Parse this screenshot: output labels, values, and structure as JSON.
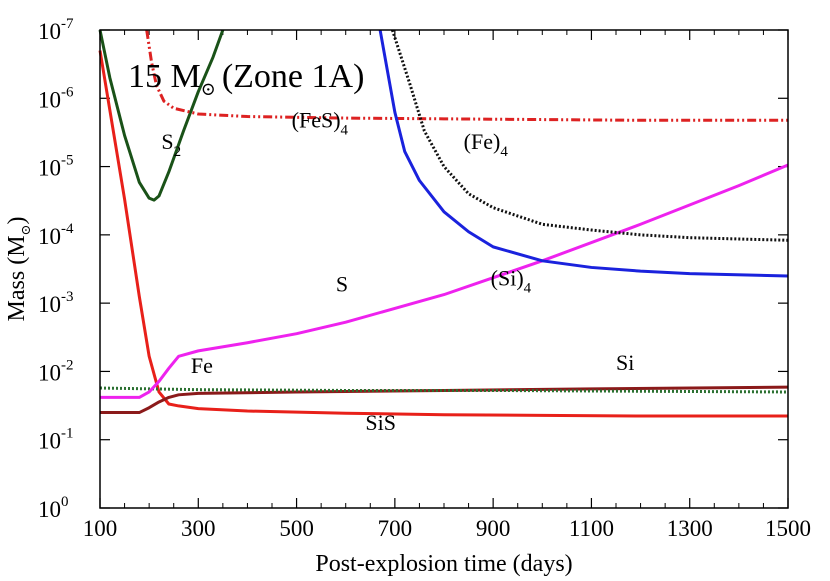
{
  "chart_data": {
    "type": "line",
    "title": "15 M⊙ (Zone 1A)",
    "title_parts": {
      "main": "15 M",
      "sub": "⊙",
      "suffix": "(Zone 1A)"
    },
    "xlabel": "Post-explosion time (days)",
    "ylabel": {
      "main": "Mass (M",
      "sub": "⊙",
      "suffix": ")"
    },
    "xlim": [
      100,
      1500
    ],
    "ylim_log10": [
      -7,
      0
    ],
    "y_scale": "log",
    "x_ticks": [
      100,
      300,
      500,
      700,
      900,
      1100,
      1300,
      1500
    ],
    "x_tick_labels": [
      "100",
      "300",
      "500",
      "700",
      "900",
      "1100",
      "1300",
      "1500"
    ],
    "y_ticks_exp": [
      0,
      -1,
      -2,
      -3,
      -4,
      -5,
      -6,
      -7
    ],
    "y_tick_labels": [
      {
        "base": "10",
        "exp": "0"
      },
      {
        "base": "10",
        "exp": "-1"
      },
      {
        "base": "10",
        "exp": "-2"
      },
      {
        "base": "10",
        "exp": "-3"
      },
      {
        "base": "10",
        "exp": "-4"
      },
      {
        "base": "10",
        "exp": "-5"
      },
      {
        "base": "10",
        "exp": "-6"
      },
      {
        "base": "10",
        "exp": "-7"
      }
    ],
    "series": [
      {
        "name": "SiS",
        "label": {
          "main": "SiS",
          "sub": ""
        },
        "label_at": [
          640,
          0.072
        ],
        "color": "#e8201a",
        "dash": "",
        "width": 3,
        "x": [
          100,
          150,
          180,
          200,
          220,
          240,
          260,
          300,
          400,
          600,
          800,
          1000,
          1200,
          1500
        ],
        "y": [
          2e-07,
          3e-05,
          0.0008,
          0.006,
          0.02,
          0.03,
          0.032,
          0.035,
          0.038,
          0.041,
          0.043,
          0.044,
          0.045,
          0.045
        ]
      },
      {
        "name": "Si",
        "label": {
          "main": "Si",
          "sub": ""
        },
        "label_at": [
          1150,
          0.0095
        ],
        "color": "#8b1a1a",
        "dash": "",
        "width": 3,
        "x": [
          100,
          180,
          200,
          220,
          240,
          260,
          300,
          500,
          800,
          1100,
          1500
        ],
        "y": [
          0.04,
          0.04,
          0.034,
          0.028,
          0.024,
          0.022,
          0.021,
          0.02,
          0.019,
          0.018,
          0.017
        ]
      },
      {
        "name": "Fe",
        "label": {
          "main": "Fe",
          "sub": ""
        },
        "label_at": [
          285,
          0.0105
        ],
        "color": "#2a7030",
        "dash": "2,2",
        "width": 3,
        "x": [
          100,
          300,
          600,
          900,
          1200,
          1500
        ],
        "y": [
          0.0175,
          0.0185,
          0.019,
          0.019,
          0.0195,
          0.02
        ]
      },
      {
        "name": "S",
        "label": {
          "main": "S",
          "sub": ""
        },
        "label_at": [
          580,
          0.00068
        ],
        "color": "#ee22ee",
        "dash": "",
        "width": 3,
        "x": [
          100,
          180,
          200,
          220,
          240,
          260,
          300,
          400,
          500,
          600,
          800,
          1000,
          1200,
          1400,
          1500
        ],
        "y": [
          0.024,
          0.024,
          0.02,
          0.014,
          0.009,
          0.006,
          0.005,
          0.0038,
          0.0028,
          0.0019,
          0.00075,
          0.00024,
          7e-05,
          1.9e-05,
          9.5e-06
        ]
      },
      {
        "name": "S2",
        "label": {
          "main": "S",
          "sub": "2"
        },
        "label_at": [
          225,
          5.5e-06
        ],
        "color": "#1a5218",
        "dash": "",
        "width": 3,
        "x": [
          100,
          120,
          150,
          180,
          200,
          210,
          220,
          240,
          270,
          300,
          330,
          350
        ],
        "y": [
          1e-07,
          5e-07,
          3.5e-06,
          1.7e-05,
          2.9e-05,
          3.1e-05,
          2.7e-05,
          1.2e-05,
          3e-06,
          8e-07,
          2.5e-07,
          1e-07
        ]
      },
      {
        "name": "(FeS)4",
        "label": {
          "main": "(FeS)",
          "sub": "4"
        },
        "label_at": [
          490,
          2.7e-06
        ],
        "color": "#dd2222",
        "dash": "9,3,2,3,2,3",
        "width": 3,
        "x": [
          195,
          205,
          215,
          230,
          250,
          300,
          400,
          600,
          800,
          1000,
          1200,
          1500
        ],
        "y": [
          1e-07,
          3e-07,
          6.5e-07,
          1.1e-06,
          1.4e-06,
          1.7e-06,
          1.85e-06,
          1.95e-06,
          2e-06,
          2.05e-06,
          2.1e-06,
          2.1e-06
        ]
      },
      {
        "name": "(Si)4",
        "label": {
          "main": "(Si)",
          "sub": "4"
        },
        "label_at": [
          895,
          0.00055
        ],
        "color": "#1a22dd",
        "dash": "",
        "width": 3,
        "x": [
          670,
          700,
          720,
          750,
          800,
          850,
          900,
          1000,
          1100,
          1200,
          1300,
          1500
        ],
        "y": [
          1e-07,
          1.6e-06,
          6e-06,
          1.6e-05,
          4.6e-05,
          9e-05,
          0.00015,
          0.00024,
          0.0003,
          0.00034,
          0.00037,
          0.0004
        ]
      },
      {
        "name": "(Fe)4",
        "label": {
          "main": "(Fe)",
          "sub": "4"
        },
        "label_at": [
          840,
          5.5e-06
        ],
        "color": "#111111",
        "dash": "2,2",
        "width": 3,
        "x": [
          695,
          730,
          760,
          800,
          850,
          900,
          1000,
          1100,
          1200,
          1300,
          1400,
          1500
        ],
        "y": [
          1e-07,
          6e-07,
          3e-06,
          1e-05,
          2.5e-05,
          4e-05,
          7e-05,
          8.5e-05,
          0.0001,
          0.00011,
          0.000115,
          0.00012
        ]
      }
    ]
  }
}
